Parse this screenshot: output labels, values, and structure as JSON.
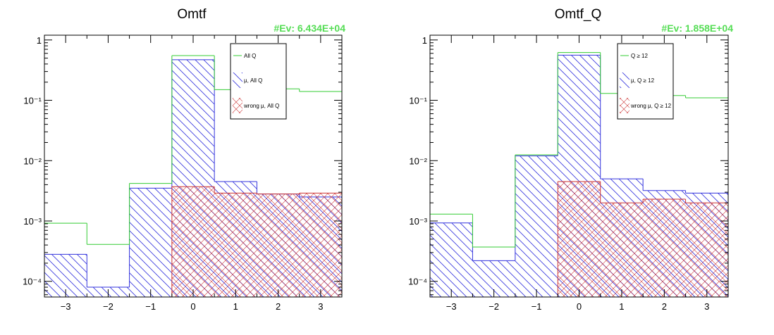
{
  "colors": {
    "all": "#33cc33",
    "mu": "#3333dd",
    "wrong": "#cc3333",
    "ev_label": "#55dd55"
  },
  "chart_data": [
    {
      "type": "histogram",
      "title": "Omtf",
      "stats_label": "#Ev: 6.434E+04",
      "xlabel": "",
      "ylabel": "",
      "xlim": [
        -3.5,
        3.5
      ],
      "ylim": [
        5.5e-05,
        1.2
      ],
      "ylog": true,
      "x_ticks": [
        "−3",
        "−2",
        "−1",
        "0",
        "1",
        "2",
        "3"
      ],
      "x_tick_values": [
        -3,
        -2,
        -1,
        0,
        1,
        2,
        3
      ],
      "y_ticks": [
        "1",
        "10⁻¹",
        "10⁻²",
        "10⁻³",
        "10⁻⁴"
      ],
      "y_tick_values": [
        1,
        0.1,
        0.01,
        0.001,
        0.0001
      ],
      "bin_edges": [
        -3.5,
        -2.5,
        -1.5,
        -0.5,
        0.5,
        1.5,
        2.5,
        3.5
      ],
      "series": [
        {
          "name": "All Q",
          "style": "line",
          "color_key": "all",
          "values": [
            0.00092,
            0.00041,
            0.0042,
            0.55,
            0.15,
            0.155,
            0.14
          ]
        },
        {
          "name": "μ, All Q",
          "style": "hatch-diag",
          "color_key": "mu",
          "values": [
            0.00028,
            8e-05,
            0.0035,
            0.47,
            0.0045,
            0.0028,
            0.0025
          ]
        },
        {
          "name": "wrong μ, All Q",
          "style": "hatch-cross",
          "color_key": "wrong",
          "values": [
            4e-05,
            4e-05,
            4e-05,
            0.0037,
            0.0029,
            0.0028,
            0.0029
          ]
        }
      ]
    },
    {
      "type": "histogram",
      "title": "Omtf_Q",
      "stats_label": "#Ev: 1.858E+04",
      "xlabel": "",
      "ylabel": "",
      "xlim": [
        -3.5,
        3.5
      ],
      "ylim": [
        5.5e-05,
        1.2
      ],
      "ylog": true,
      "x_ticks": [
        "−3",
        "−2",
        "−1",
        "0",
        "1",
        "2",
        "3"
      ],
      "x_tick_values": [
        -3,
        -2,
        -1,
        0,
        1,
        2,
        3
      ],
      "y_ticks": [
        "1",
        "10⁻¹",
        "10⁻²",
        "10⁻³",
        "10⁻⁴"
      ],
      "y_tick_values": [
        1,
        0.1,
        0.01,
        0.001,
        0.0001
      ],
      "bin_edges": [
        -3.5,
        -2.5,
        -1.5,
        -0.5,
        0.5,
        1.5,
        2.5,
        3.5
      ],
      "series": [
        {
          "name": "Q ≥ 12",
          "style": "line",
          "color_key": "all",
          "values": [
            0.0013,
            0.00037,
            0.0125,
            0.62,
            0.13,
            0.12,
            0.11
          ]
        },
        {
          "name": "μ, Q ≥ 12",
          "style": "hatch-diag",
          "color_key": "mu",
          "values": [
            0.00093,
            0.00022,
            0.012,
            0.56,
            0.005,
            0.0032,
            0.0029
          ]
        },
        {
          "name": "wrong μ, Q ≥ 12",
          "style": "hatch-cross",
          "color_key": "wrong",
          "values": [
            4e-05,
            4e-05,
            5.5e-05,
            0.0045,
            0.002,
            0.0023,
            0.002
          ]
        }
      ]
    }
  ]
}
